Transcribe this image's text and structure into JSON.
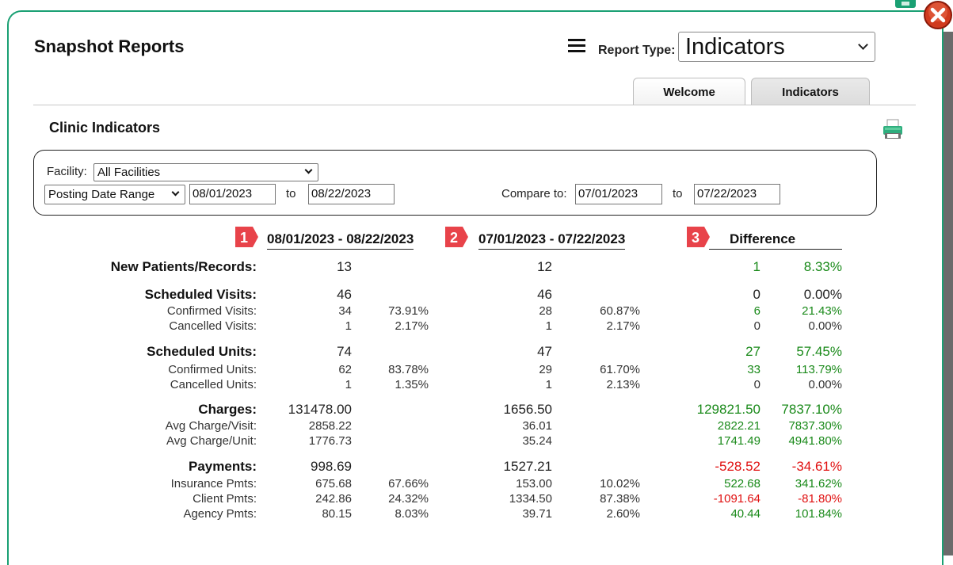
{
  "header": {
    "title": "Snapshot Reports",
    "report_type_label": "Report Type:",
    "report_type_value": "Indicators"
  },
  "tabs": [
    {
      "label": "Welcome",
      "active": false
    },
    {
      "label": "Indicators",
      "active": true
    }
  ],
  "section": {
    "title": "Clinic Indicators"
  },
  "filters": {
    "facility_label": "Facility:",
    "facility_value": "All Facilities",
    "date_range_type": "Posting Date Range",
    "from_date": "08/01/2023",
    "to_label": "to",
    "to_date": "08/22/2023",
    "compare_label": "Compare to:",
    "compare_from": "07/01/2023",
    "compare_to_label": "to",
    "compare_to": "07/22/2023"
  },
  "columns": {
    "period1": {
      "badge": "1",
      "label": "08/01/2023 - 08/22/2023"
    },
    "period2": {
      "badge": "2",
      "label": "07/01/2023 - 07/22/2023"
    },
    "difference": {
      "badge": "3",
      "label": "Difference"
    }
  },
  "rows": {
    "new_patients": {
      "label": "New Patients/Records:",
      "p1": "13",
      "p1pct": "",
      "p2": "12",
      "p2pct": "",
      "diff": "1",
      "diffpct": "8.33%"
    },
    "scheduled_visits": {
      "label": "Scheduled Visits:",
      "p1": "46",
      "p1pct": "",
      "p2": "46",
      "p2pct": "",
      "diff": "0",
      "diffpct": "0.00%"
    },
    "confirmed_visits": {
      "label": "Confirmed Visits:",
      "p1": "34",
      "p1pct": "73.91%",
      "p2": "28",
      "p2pct": "60.87%",
      "diff": "6",
      "diffpct": "21.43%"
    },
    "cancelled_visits": {
      "label": "Cancelled Visits:",
      "p1": "1",
      "p1pct": "2.17%",
      "p2": "1",
      "p2pct": "2.17%",
      "diff": "0",
      "diffpct": "0.00%"
    },
    "scheduled_units": {
      "label": "Scheduled Units:",
      "p1": "74",
      "p1pct": "",
      "p2": "47",
      "p2pct": "",
      "diff": "27",
      "diffpct": "57.45%"
    },
    "confirmed_units": {
      "label": "Confirmed Units:",
      "p1": "62",
      "p1pct": "83.78%",
      "p2": "29",
      "p2pct": "61.70%",
      "diff": "33",
      "diffpct": "113.79%"
    },
    "cancelled_units": {
      "label": "Cancelled Units:",
      "p1": "1",
      "p1pct": "1.35%",
      "p2": "1",
      "p2pct": "2.13%",
      "diff": "0",
      "diffpct": "0.00%"
    },
    "charges": {
      "label": "Charges:",
      "p1": "131478.00",
      "p1pct": "",
      "p2": "1656.50",
      "p2pct": "",
      "diff": "129821.50",
      "diffpct": "7837.10%"
    },
    "avg_charge_visit": {
      "label": "Avg Charge/Visit:",
      "p1": "2858.22",
      "p1pct": "",
      "p2": "36.01",
      "p2pct": "",
      "diff": "2822.21",
      "diffpct": "7837.30%"
    },
    "avg_charge_unit": {
      "label": "Avg Charge/Unit:",
      "p1": "1776.73",
      "p1pct": "",
      "p2": "35.24",
      "p2pct": "",
      "diff": "1741.49",
      "diffpct": "4941.80%"
    },
    "payments": {
      "label": "Payments:",
      "p1": "998.69",
      "p1pct": "",
      "p2": "1527.21",
      "p2pct": "",
      "diff": "-528.52",
      "diffpct": "-34.61%"
    },
    "insurance_pmts": {
      "label": "Insurance Pmts:",
      "p1": "675.68",
      "p1pct": "67.66%",
      "p2": "153.00",
      "p2pct": "10.02%",
      "diff": "522.68",
      "diffpct": "341.62%"
    },
    "client_pmts": {
      "label": "Client Pmts:",
      "p1": "242.86",
      "p1pct": "24.32%",
      "p2": "1334.50",
      "p2pct": "87.38%",
      "diff": "-1091.64",
      "diffpct": "-81.80%"
    },
    "agency_pmts": {
      "label": "Agency Pmts:",
      "p1": "80.15",
      "p1pct": "8.03%",
      "p2": "39.71",
      "p2pct": "2.60%",
      "diff": "40.44",
      "diffpct": "101.84%"
    }
  },
  "colors": {
    "accent": "#1aa073",
    "positive": "#1a8a1a",
    "negative": "#e01010",
    "badge": "#e8434a"
  }
}
